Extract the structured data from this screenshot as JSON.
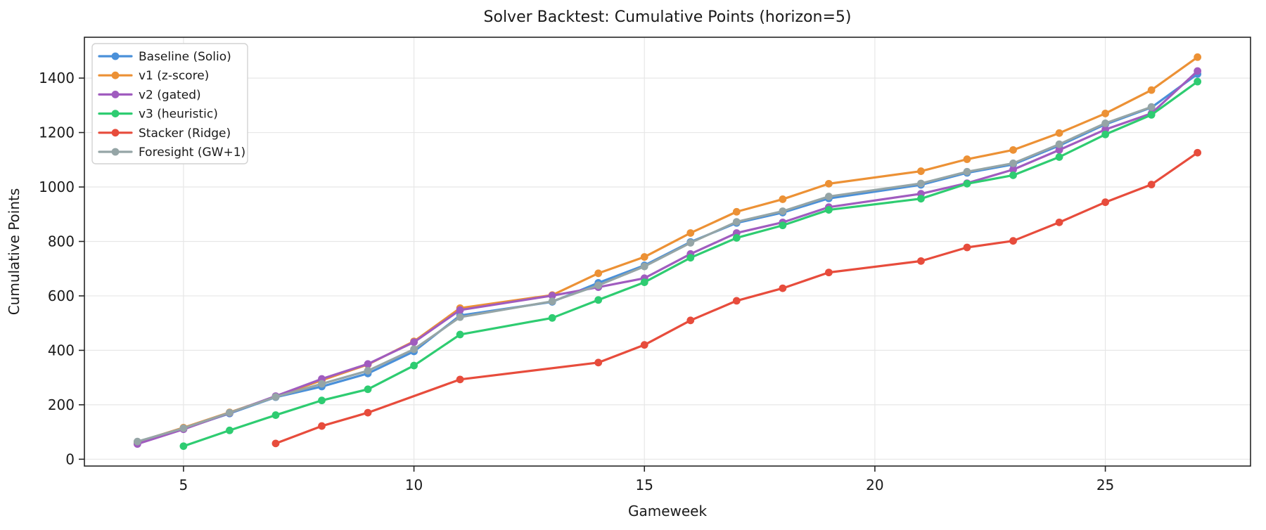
{
  "title": "Solver Backtest: Cumulative Points (horizon=5)",
  "chart_data": {
    "type": "line",
    "title": "Solver Backtest: Cumulative Points (horizon=5)",
    "xlabel": "Gameweek",
    "ylabel": "Cumulative Points",
    "xlim": [
      2.85,
      28.15
    ],
    "ylim": [
      -25,
      1550
    ],
    "xticks": [
      5,
      10,
      15,
      20,
      25
    ],
    "yticks": [
      0,
      200,
      400,
      600,
      800,
      1000,
      1200,
      1400
    ],
    "grid": true,
    "legend_position": "upper left",
    "note_missing_gameweeks": [
      12,
      20
    ],
    "series": [
      {
        "name": "Baseline (Solio)",
        "color": "#4A90D9",
        "x": [
          4,
          5,
          6,
          7,
          8,
          9,
          10,
          11,
          13,
          14,
          15,
          16,
          17,
          18,
          19,
          21,
          22,
          23,
          24,
          25,
          26,
          27
        ],
        "y": [
          62,
          112,
          168,
          228,
          267,
          315,
          396,
          528,
          578,
          648,
          712,
          798,
          868,
          906,
          958,
          1008,
          1052,
          1083,
          1152,
          1230,
          1292,
          1415
        ]
      },
      {
        "name": "v1 (z-score)",
        "color": "#EC9135",
        "x": [
          4,
          5,
          6,
          7,
          8,
          9,
          10,
          11,
          13,
          14,
          15,
          16,
          17,
          18,
          19,
          21,
          22,
          23,
          24,
          25,
          26,
          27
        ],
        "y": [
          63,
          116,
          172,
          230,
          290,
          348,
          433,
          555,
          603,
          683,
          743,
          831,
          909,
          955,
          1012,
          1058,
          1102,
          1136,
          1198,
          1270,
          1356,
          1477
        ]
      },
      {
        "name": "v2 (gated)",
        "color": "#A05CBF",
        "x": [
          4,
          5,
          6,
          7,
          8,
          9,
          10,
          11,
          13,
          14,
          15,
          16,
          17,
          18,
          19,
          21,
          22,
          23,
          24,
          25,
          26,
          27
        ],
        "y": [
          56,
          110,
          170,
          232,
          295,
          350,
          430,
          548,
          601,
          632,
          665,
          754,
          831,
          870,
          926,
          975,
          1014,
          1064,
          1136,
          1211,
          1270,
          1426
        ]
      },
      {
        "name": "v3 (heuristic)",
        "color": "#2ECC71",
        "x": [
          5,
          6,
          7,
          8,
          9,
          10,
          11,
          13,
          14,
          15,
          16,
          17,
          18,
          19,
          21,
          22,
          23,
          24,
          25,
          26,
          27
        ],
        "y": [
          48,
          106,
          162,
          216,
          257,
          344,
          458,
          519,
          585,
          650,
          740,
          813,
          859,
          916,
          957,
          1012,
          1043,
          1110,
          1193,
          1265,
          1387
        ]
      },
      {
        "name": "Stacker (Ridge)",
        "color": "#E74C3C",
        "x": [
          7,
          8,
          9,
          11,
          14,
          15,
          16,
          17,
          18,
          19,
          21,
          22,
          23,
          24,
          25,
          26,
          27
        ],
        "y": [
          58,
          122,
          171,
          293,
          355,
          420,
          510,
          582,
          628,
          686,
          728,
          778,
          802,
          870,
          944,
          1009,
          1126
        ]
      },
      {
        "name": "Foresight (GW+1)",
        "color": "#95A5A6",
        "x": [
          4,
          5,
          6,
          7,
          8,
          9,
          10,
          11,
          13,
          14,
          15,
          16,
          17,
          18,
          19,
          21,
          22,
          23,
          24,
          25,
          26
        ],
        "y": [
          65,
          114,
          171,
          229,
          277,
          325,
          404,
          522,
          580,
          639,
          708,
          795,
          872,
          911,
          965,
          1013,
          1056,
          1087,
          1157,
          1234,
          1294
        ]
      }
    ]
  }
}
